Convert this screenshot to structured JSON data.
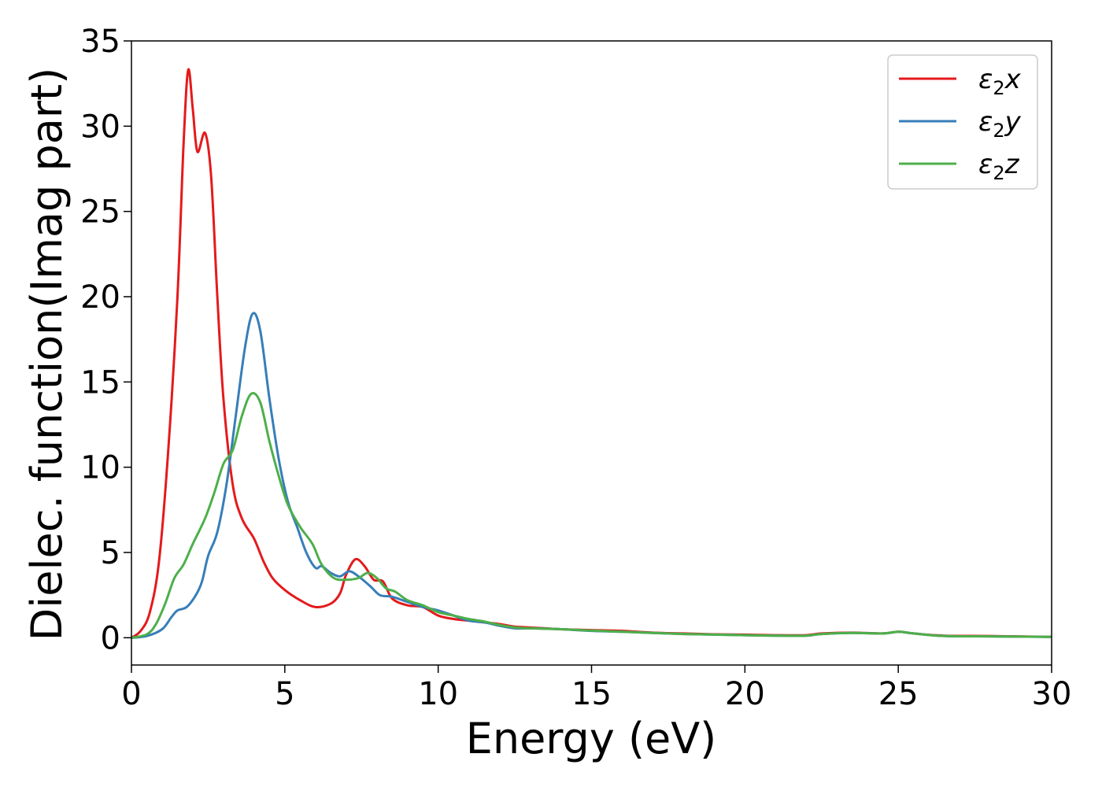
{
  "chart_data": {
    "type": "line",
    "xlabel": "Energy (eV)",
    "ylabel": "Dielec. function(Imag part)",
    "xlim": [
      0,
      30
    ],
    "ylim": [
      -1.6,
      35
    ],
    "xticks": [
      0,
      5,
      10,
      15,
      20,
      25,
      30
    ],
    "yticks": [
      0,
      5,
      10,
      15,
      20,
      25,
      30,
      35
    ],
    "grid": false,
    "legend_position": "top-right",
    "series": [
      {
        "name": "ε₂x",
        "legend_main": "ε",
        "legend_sub": "2",
        "legend_suffix": "x",
        "color": "#e41a1c",
        "points": [
          [
            0,
            0
          ],
          [
            0.3,
            0.4
          ],
          [
            0.6,
            1.5
          ],
          [
            0.9,
            4.5
          ],
          [
            1.2,
            11
          ],
          [
            1.5,
            20
          ],
          [
            1.7,
            29
          ],
          [
            1.85,
            33.3
          ],
          [
            2.0,
            31
          ],
          [
            2.15,
            28.5
          ],
          [
            2.4,
            29.6
          ],
          [
            2.6,
            27
          ],
          [
            2.8,
            20
          ],
          [
            3.0,
            14
          ],
          [
            3.3,
            9
          ],
          [
            3.6,
            7
          ],
          [
            4.0,
            5.8
          ],
          [
            4.3,
            4.5
          ],
          [
            4.6,
            3.5
          ],
          [
            5.0,
            2.8
          ],
          [
            5.5,
            2.2
          ],
          [
            6.0,
            1.8
          ],
          [
            6.5,
            2.0
          ],
          [
            6.8,
            2.6
          ],
          [
            7.0,
            3.7
          ],
          [
            7.3,
            4.6
          ],
          [
            7.6,
            4.2
          ],
          [
            7.9,
            3.4
          ],
          [
            8.2,
            3.3
          ],
          [
            8.5,
            2.3
          ],
          [
            9.0,
            1.9
          ],
          [
            9.5,
            1.8
          ],
          [
            10.0,
            1.3
          ],
          [
            10.5,
            1.1
          ],
          [
            11,
            1.0
          ],
          [
            11.5,
            0.9
          ],
          [
            12,
            0.8
          ],
          [
            12.5,
            0.65
          ],
          [
            13,
            0.6
          ],
          [
            14,
            0.5
          ],
          [
            15,
            0.45
          ],
          [
            16,
            0.4
          ],
          [
            17,
            0.3
          ],
          [
            18,
            0.25
          ],
          [
            19,
            0.2
          ],
          [
            20,
            0.18
          ],
          [
            21,
            0.15
          ],
          [
            22,
            0.15
          ],
          [
            22.5,
            0.25
          ],
          [
            23.5,
            0.3
          ],
          [
            24.5,
            0.25
          ],
          [
            25,
            0.35
          ],
          [
            25.5,
            0.25
          ],
          [
            26.5,
            0.12
          ],
          [
            28,
            0.1
          ],
          [
            30,
            0.05
          ]
        ]
      },
      {
        "name": "ε₂y",
        "legend_main": "ε",
        "legend_sub": "2",
        "legend_suffix": "y",
        "color": "#377eb8",
        "points": [
          [
            0,
            0
          ],
          [
            0.5,
            0.1
          ],
          [
            1.0,
            0.5
          ],
          [
            1.3,
            1.2
          ],
          [
            1.5,
            1.6
          ],
          [
            1.8,
            1.8
          ],
          [
            2.1,
            2.5
          ],
          [
            2.3,
            3.3
          ],
          [
            2.5,
            4.8
          ],
          [
            2.8,
            6.2
          ],
          [
            3.1,
            9
          ],
          [
            3.4,
            13
          ],
          [
            3.7,
            17
          ],
          [
            3.95,
            19.0
          ],
          [
            4.2,
            18
          ],
          [
            4.5,
            14
          ],
          [
            4.8,
            10.5
          ],
          [
            5.1,
            8
          ],
          [
            5.4,
            6.5
          ],
          [
            5.7,
            5
          ],
          [
            6.0,
            4.1
          ],
          [
            6.2,
            4.2
          ],
          [
            6.5,
            3.8
          ],
          [
            6.8,
            3.6
          ],
          [
            7.1,
            3.9
          ],
          [
            7.4,
            3.6
          ],
          [
            7.8,
            3.0
          ],
          [
            8.1,
            2.5
          ],
          [
            8.5,
            2.4
          ],
          [
            9.0,
            2.1
          ],
          [
            9.5,
            1.8
          ],
          [
            10.0,
            1.6
          ],
          [
            10.5,
            1.3
          ],
          [
            11,
            1.0
          ],
          [
            11.5,
            0.9
          ],
          [
            12,
            0.7
          ],
          [
            12.5,
            0.55
          ],
          [
            13,
            0.55
          ],
          [
            14,
            0.5
          ],
          [
            15,
            0.4
          ],
          [
            16,
            0.35
          ],
          [
            17,
            0.28
          ],
          [
            18,
            0.22
          ],
          [
            19,
            0.18
          ],
          [
            20,
            0.15
          ],
          [
            21,
            0.12
          ],
          [
            22,
            0.12
          ],
          [
            22.5,
            0.22
          ],
          [
            23.5,
            0.28
          ],
          [
            24.5,
            0.25
          ],
          [
            25,
            0.35
          ],
          [
            25.5,
            0.25
          ],
          [
            26.5,
            0.1
          ],
          [
            28,
            0.08
          ],
          [
            30,
            0.05
          ]
        ]
      },
      {
        "name": "ε₂z",
        "legend_main": "ε",
        "legend_sub": "2",
        "legend_suffix": "z",
        "color": "#4daf4a",
        "points": [
          [
            0,
            0
          ],
          [
            0.5,
            0.2
          ],
          [
            0.8,
            0.8
          ],
          [
            1.1,
            2.0
          ],
          [
            1.4,
            3.5
          ],
          [
            1.7,
            4.3
          ],
          [
            2.0,
            5.5
          ],
          [
            2.4,
            7
          ],
          [
            2.7,
            8.5
          ],
          [
            3.0,
            10.2
          ],
          [
            3.3,
            11
          ],
          [
            3.6,
            13
          ],
          [
            3.9,
            14.3
          ],
          [
            4.2,
            13.8
          ],
          [
            4.5,
            11.5
          ],
          [
            4.8,
            9.5
          ],
          [
            5.1,
            7.8
          ],
          [
            5.5,
            6.5
          ],
          [
            5.9,
            5.5
          ],
          [
            6.2,
            4.3
          ],
          [
            6.6,
            3.5
          ],
          [
            7.0,
            3.4
          ],
          [
            7.4,
            3.5
          ],
          [
            7.7,
            3.8
          ],
          [
            8.0,
            3.5
          ],
          [
            8.3,
            2.9
          ],
          [
            8.6,
            2.7
          ],
          [
            9.0,
            2.2
          ],
          [
            9.5,
            1.9
          ],
          [
            10.0,
            1.5
          ],
          [
            10.5,
            1.3
          ],
          [
            11,
            1.1
          ],
          [
            11.5,
            0.95
          ],
          [
            12,
            0.75
          ],
          [
            12.5,
            0.6
          ],
          [
            13,
            0.55
          ],
          [
            14,
            0.5
          ],
          [
            15,
            0.42
          ],
          [
            16,
            0.35
          ],
          [
            17,
            0.28
          ],
          [
            18,
            0.22
          ],
          [
            19,
            0.18
          ],
          [
            20,
            0.15
          ],
          [
            21,
            0.12
          ],
          [
            22,
            0.12
          ],
          [
            22.5,
            0.22
          ],
          [
            23.5,
            0.28
          ],
          [
            24.5,
            0.25
          ],
          [
            25,
            0.35
          ],
          [
            25.5,
            0.25
          ],
          [
            26.5,
            0.1
          ],
          [
            28,
            0.08
          ],
          [
            30,
            0.05
          ]
        ]
      }
    ]
  }
}
